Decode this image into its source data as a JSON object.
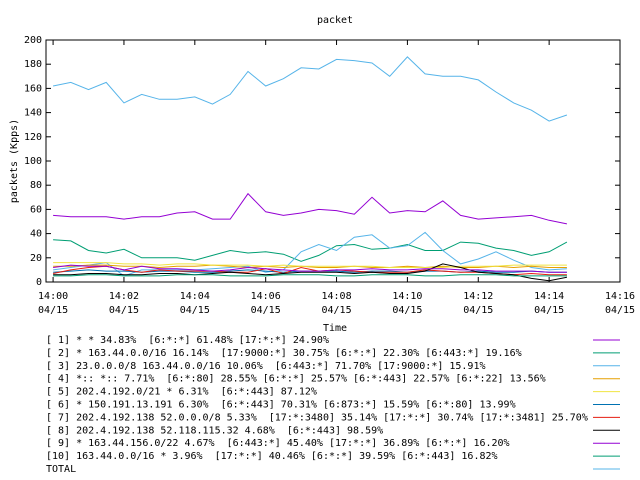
{
  "chart_data": {
    "type": "line",
    "title": "packet",
    "ylabel": "packets (Kpps)",
    "xlabel": "Time",
    "x": [
      0,
      0.5,
      1,
      1.5,
      2,
      2.5,
      3,
      3.5,
      4,
      4.5,
      5,
      5.5,
      6,
      6.5,
      7,
      7.5,
      8,
      8.5,
      9,
      9.5,
      10,
      10.5,
      11,
      11.5,
      12,
      12.5,
      13,
      13.5,
      14,
      14.5
    ],
    "xlim": [
      -0.2,
      16
    ],
    "xticks": [
      {
        "value": 0,
        "label": "14:00",
        "date": "04/15"
      },
      {
        "value": 2,
        "label": "14:02",
        "date": "04/15"
      },
      {
        "value": 4,
        "label": "14:04",
        "date": "04/15"
      },
      {
        "value": 6,
        "label": "14:06",
        "date": "04/15"
      },
      {
        "value": 8,
        "label": "14:08",
        "date": "04/15"
      },
      {
        "value": 10,
        "label": "14:10",
        "date": "04/15"
      },
      {
        "value": 12,
        "label": "14:12",
        "date": "04/15"
      },
      {
        "value": 14,
        "label": "14:14",
        "date": "04/15"
      },
      {
        "value": 16,
        "label": "14:16",
        "date": "04/15"
      }
    ],
    "ylim": [
      0,
      200
    ],
    "yticks": [
      0,
      20,
      40,
      60,
      80,
      100,
      120,
      140,
      160,
      180,
      200
    ],
    "series": [
      {
        "name": "[ 1] * * 34.83%  [6:*:*] 61.48% [17:*:*] 24.90%",
        "color": "#9400d3",
        "values": [
          55,
          54,
          54,
          54,
          52,
          54,
          54,
          57,
          58,
          52,
          52,
          73,
          58,
          55,
          57,
          60,
          59,
          56,
          70,
          57,
          59,
          58,
          67,
          55,
          52,
          53,
          54,
          55,
          51,
          48
        ]
      },
      {
        "name": "[ 2] * 163.44.0.0/16 16.14%  [17:9000:*] 30.75% [6:*:*] 22.30% [6:443:*] 19.16%",
        "color": "#009e73",
        "values": [
          35,
          34,
          26,
          24,
          27,
          20,
          20,
          20,
          18,
          22,
          26,
          24,
          25,
          23,
          17,
          22,
          30,
          31,
          27,
          28,
          31,
          26,
          26,
          33,
          32,
          28,
          26,
          22,
          25,
          33
        ]
      },
      {
        "name": "[ 3] 23.0.0.0/8 163.44.0.0/16 10.06%  [6:443:*] 71.70% [17:9000:*] 15.91%",
        "color": "#56b4e9",
        "values": [
          10,
          12,
          14,
          16,
          5,
          10,
          10,
          10,
          10,
          11,
          12,
          13,
          8,
          10,
          25,
          31,
          26,
          37,
          39,
          28,
          30,
          41,
          26,
          15,
          19,
          25,
          18,
          12,
          10,
          11
        ]
      },
      {
        "name": "[ 4] *:: *:: 7.71%  [6:*:80] 28.55% [6:*:*] 25.57% [6:*:443] 22.57% [6:*:22] 13.56%",
        "color": "#e69f00",
        "values": [
          13,
          13,
          14,
          14,
          13,
          13,
          12,
          13,
          13,
          14,
          13,
          12,
          13,
          12,
          13,
          12,
          12,
          13,
          12,
          12,
          13,
          12,
          13,
          12,
          12,
          13,
          12,
          13,
          12,
          12
        ]
      },
      {
        "name": "[ 5] 202.4.192.0/21 * 6.31%  [6:*:443] 87.12%",
        "color": "#f0e442",
        "values": [
          16,
          16,
          16,
          16,
          15,
          15,
          14,
          15,
          15,
          14,
          14,
          14,
          13,
          14,
          13,
          13,
          13,
          13,
          13,
          12,
          12,
          12,
          12,
          13,
          13,
          13,
          14,
          14,
          14,
          14
        ]
      },
      {
        "name": "[ 6] * 150.191.13.191 6.30%  [6:*:443] 70.31% [6:873:*] 15.59% [6:*:80] 13.99%",
        "color": "#0072b2",
        "values": [
          8,
          9,
          10,
          9,
          9,
          8,
          9,
          9,
          8,
          8,
          9,
          10,
          9,
          8,
          9,
          9,
          9,
          8,
          9,
          9,
          8,
          9,
          9,
          8,
          9,
          8,
          8,
          9,
          8,
          8
        ]
      },
      {
        "name": "[ 7] 202.4.192.138 52.0.0.0/8 5.33%  [17:*:3480] 35.14% [17:*:*] 30.74% [17:*:3481] 25.70%",
        "color": "#e51e10",
        "values": [
          7,
          10,
          12,
          13,
          10,
          8,
          10,
          9,
          9,
          9,
          8,
          8,
          11,
          7,
          12,
          9,
          10,
          9,
          8,
          8,
          8,
          10,
          9,
          8,
          8,
          7,
          6,
          7,
          6,
          6
        ]
      },
      {
        "name": "[ 8] 202.4.192.138 52.118.115.32 4.68%  [6:*:443] 98.59%",
        "color": "#000000",
        "values": [
          6,
          6,
          7,
          7,
          6,
          6,
          7,
          7,
          6,
          7,
          8,
          7,
          6,
          7,
          8,
          8,
          8,
          7,
          8,
          7,
          7,
          9,
          15,
          12,
          8,
          7,
          6,
          3,
          1,
          4
        ]
      },
      {
        "name": "[ 9] * 163.44.156.0/22 4.67%  [6:443:*] 45.40% [17:*:*] 36.89% [6:*:*] 16.20%",
        "color": "#9400d3",
        "values": [
          12,
          14,
          13,
          13,
          10,
          13,
          11,
          11,
          10,
          9,
          10,
          12,
          11,
          10,
          9,
          9,
          10,
          10,
          11,
          10,
          10,
          11,
          11,
          10,
          10,
          9,
          9,
          9,
          8,
          8
        ]
      },
      {
        "name": "[10] 163.44.0.0/16 * 3.96%  [17:*:*] 40.46% [6:*:*] 39.59% [6:*:443] 16.82%",
        "color": "#009e73",
        "values": [
          5,
          5,
          6,
          6,
          5,
          5,
          5,
          6,
          6,
          6,
          5,
          5,
          5,
          6,
          6,
          6,
          5,
          5,
          6,
          6,
          6,
          5,
          5,
          6,
          6,
          6,
          5,
          5,
          5,
          5
        ]
      },
      {
        "name": "TOTAL",
        "color": "#56b4e9",
        "values": [
          162,
          165,
          159,
          165,
          148,
          155,
          151,
          151,
          153,
          147,
          155,
          174,
          162,
          168,
          177,
          176,
          184,
          183,
          181,
          170,
          186,
          172,
          170,
          170,
          167,
          157,
          148,
          142,
          133,
          138
        ]
      }
    ]
  }
}
